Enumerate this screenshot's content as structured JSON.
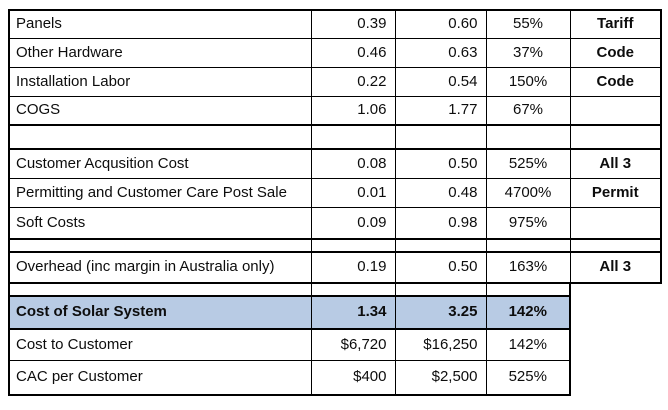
{
  "colors": {
    "highlight_row_bg": "#b8cbe4",
    "border": "#000000",
    "text": "#0d0d0d",
    "background": "#ffffff"
  },
  "table": {
    "rows": [
      {
        "label": "Panels",
        "v1": "0.39",
        "v2": "0.60",
        "pct": "55%",
        "note": "Tariff"
      },
      {
        "label": "Other Hardware",
        "v1": "0.46",
        "v2": "0.63",
        "pct": "37%",
        "note": "Code"
      },
      {
        "label": "Installation Labor",
        "v1": "0.22",
        "v2": "0.54",
        "pct": "150%",
        "note": "Code"
      },
      {
        "label": "COGS",
        "v1": "1.06",
        "v2": "1.77",
        "pct": "67%",
        "note": ""
      },
      {
        "label": "Customer Acqusition Cost",
        "v1": "0.08",
        "v2": "0.50",
        "pct": "525%",
        "note": "All 3"
      },
      {
        "label": "Permitting and Customer Care Post Sale",
        "v1": "0.01",
        "v2": "0.48",
        "pct": "4700%",
        "note": "Permit"
      },
      {
        "label": "Soft Costs",
        "v1": "0.09",
        "v2": "0.98",
        "pct": "975%",
        "note": ""
      },
      {
        "label": "Overhead (inc margin in Australia only)",
        "v1": "0.19",
        "v2": "0.50",
        "pct": "163%",
        "note": "All 3"
      },
      {
        "label": "Cost of Solar System",
        "v1": "1.34",
        "v2": "3.25",
        "pct": "142%"
      },
      {
        "label": "Cost to Customer",
        "v1": "$6,720",
        "v2": "$16,250",
        "pct": "142%"
      },
      {
        "label": "CAC per Customer",
        "v1": "$400",
        "v2": "$2,500",
        "pct": "525%"
      }
    ]
  }
}
